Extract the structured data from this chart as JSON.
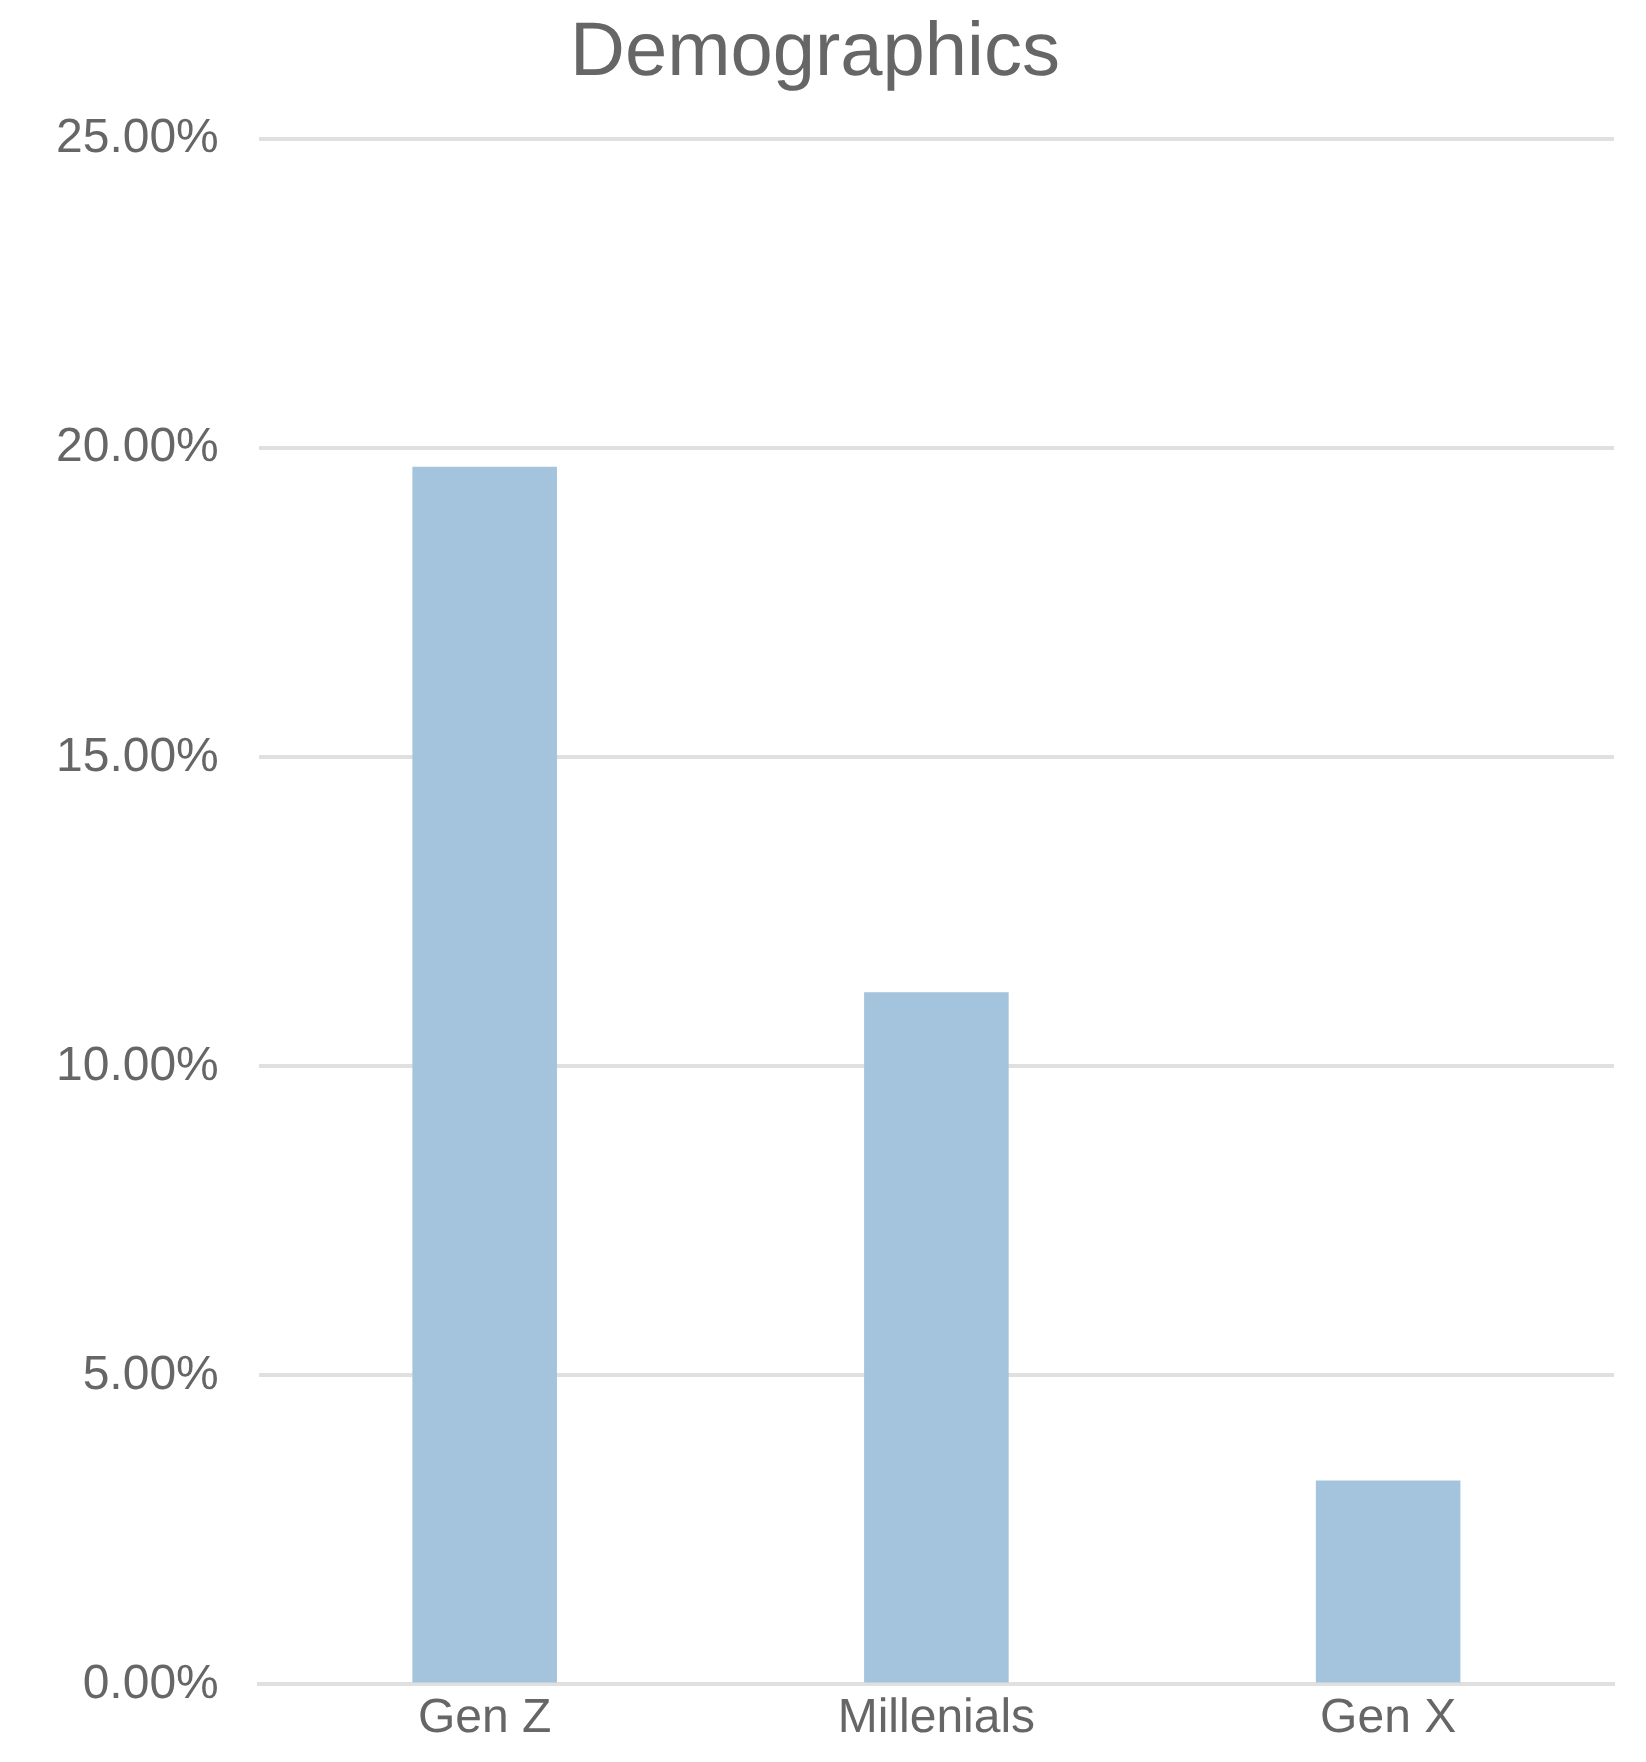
{
  "chart_data": {
    "type": "bar",
    "title": "Demographics",
    "categories": [
      "Gen Z",
      "Millenials",
      "Gen X"
    ],
    "values": [
      19.7,
      11.2,
      3.3
    ],
    "color": "#a4c3dc",
    "ylim": [
      0,
      25
    ],
    "yticks": [
      {
        "value": 0,
        "label": "0.00%"
      },
      {
        "value": 5,
        "label": "5.00%"
      },
      {
        "value": 10,
        "label": "10.00%"
      },
      {
        "value": 15,
        "label": "15.00%"
      },
      {
        "value": 20,
        "label": "20.00%"
      },
      {
        "value": 25,
        "label": "25.00%"
      }
    ],
    "grid": "y",
    "legend": false
  }
}
